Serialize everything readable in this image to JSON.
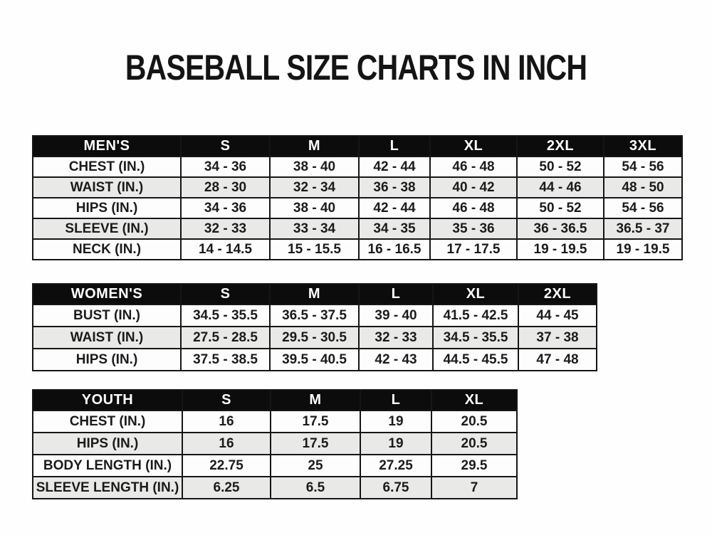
{
  "page": {
    "title": "BASEBALL SIZE CHARTS IN INCH"
  },
  "colors": {
    "page_bg": "#fefefe",
    "title_color": "#141414",
    "header_bg": "#0c0c0c",
    "header_text": "#ffffff",
    "border_color": "#161616",
    "cell_text": "#1b1b1b",
    "row_white": "#fdfdfd",
    "row_alt": "#e9e9e7"
  },
  "tables": [
    {
      "id": "mens",
      "label": "MEN'S",
      "columns": [
        "S",
        "M",
        "L",
        "XL",
        "2XL",
        "3XL"
      ],
      "rows": [
        {
          "label": "CHEST (IN.)",
          "values": [
            "34 - 36",
            "38 - 40",
            "42 - 44",
            "46 - 48",
            "50 - 52",
            "54 - 56"
          ]
        },
        {
          "label": "WAIST (IN.)",
          "values": [
            "28 - 30",
            "32 - 34",
            "36 - 38",
            "40 - 42",
            "44 - 46",
            "48 - 50"
          ]
        },
        {
          "label": "HIPS (IN.)",
          "values": [
            "34 - 36",
            "38 - 40",
            "42 - 44",
            "46 - 48",
            "50 - 52",
            "54 - 56"
          ]
        },
        {
          "label": "SLEEVE (IN.)",
          "values": [
            "32 - 33",
            "33 - 34",
            "34 - 35",
            "35 - 36",
            "36 - 36.5",
            "36.5 - 37"
          ]
        },
        {
          "label": "NECK (IN.)",
          "values": [
            "14 - 14.5",
            "15 - 15.5",
            "16 - 16.5",
            "17 - 17.5",
            "19 - 19.5",
            "19 - 19.5"
          ]
        }
      ]
    },
    {
      "id": "womens",
      "label": "WOMEN'S",
      "columns": [
        "S",
        "M",
        "L",
        "XL",
        "2XL"
      ],
      "rows": [
        {
          "label": "BUST (IN.)",
          "values": [
            "34.5 - 35.5",
            "36.5 - 37.5",
            "39 - 40",
            "41.5 - 42.5",
            "44 - 45"
          ]
        },
        {
          "label": "WAIST (IN.)",
          "values": [
            "27.5 - 28.5",
            "29.5 - 30.5",
            "32 - 33",
            "34.5 - 35.5",
            "37 - 38"
          ]
        },
        {
          "label": "HIPS (IN.)",
          "values": [
            "37.5 - 38.5",
            "39.5 - 40.5",
            "42 - 43",
            "44.5 - 45.5",
            "47 - 48"
          ]
        }
      ]
    },
    {
      "id": "youth",
      "label": "YOUTH",
      "columns": [
        "S",
        "M",
        "L",
        "XL"
      ],
      "rows": [
        {
          "label": "CHEST (IN.)",
          "values": [
            "16",
            "17.5",
            "19",
            "20.5"
          ]
        },
        {
          "label": "HIPS (IN.)",
          "values": [
            "16",
            "17.5",
            "19",
            "20.5"
          ]
        },
        {
          "label": "BODY LENGTH (IN.)",
          "values": [
            "22.75",
            "25",
            "27.25",
            "29.5"
          ]
        },
        {
          "label": "SLEEVE LENGTH (IN.)",
          "values": [
            "6.25",
            "6.5",
            "6.75",
            "7"
          ]
        }
      ]
    }
  ]
}
